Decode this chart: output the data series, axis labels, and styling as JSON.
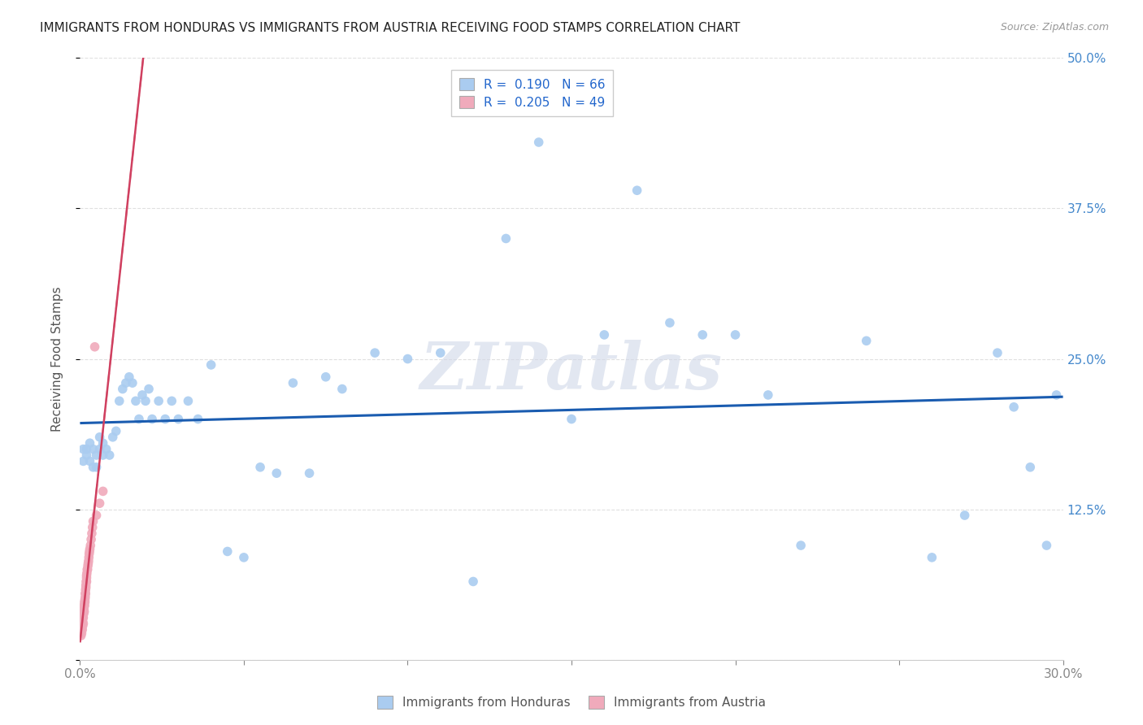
{
  "title": "IMMIGRANTS FROM HONDURAS VS IMMIGRANTS FROM AUSTRIA RECEIVING FOOD STAMPS CORRELATION CHART",
  "source_text": "Source: ZipAtlas.com",
  "ylabel": "Receiving Food Stamps",
  "xlim": [
    0.0,
    0.3
  ],
  "ylim": [
    0.0,
    0.5
  ],
  "background_color": "#ffffff",
  "grid_color": "#e0e0e0",
  "watermark": "ZIPatlas",
  "legend_label1": "Immigrants from Honduras",
  "legend_label2": "Immigrants from Austria",
  "honduras_color": "#aaccf0",
  "austria_color": "#f0aabb",
  "honduras_line_color": "#1a5cb0",
  "austria_line_color": "#d04060",
  "austria_dash_color": "#e08898",
  "dot_size": 70,
  "honduras_x": [
    0.001,
    0.001,
    0.002,
    0.002,
    0.003,
    0.003,
    0.004,
    0.004,
    0.005,
    0.005,
    0.006,
    0.006,
    0.007,
    0.007,
    0.008,
    0.009,
    0.01,
    0.011,
    0.012,
    0.013,
    0.014,
    0.015,
    0.016,
    0.017,
    0.018,
    0.019,
    0.02,
    0.021,
    0.022,
    0.024,
    0.026,
    0.028,
    0.03,
    0.033,
    0.036,
    0.04,
    0.045,
    0.05,
    0.055,
    0.06,
    0.065,
    0.07,
    0.075,
    0.08,
    0.09,
    0.1,
    0.11,
    0.12,
    0.13,
    0.14,
    0.15,
    0.16,
    0.17,
    0.18,
    0.19,
    0.2,
    0.21,
    0.22,
    0.24,
    0.26,
    0.27,
    0.28,
    0.285,
    0.29,
    0.295,
    0.298
  ],
  "honduras_y": [
    0.175,
    0.165,
    0.17,
    0.175,
    0.165,
    0.18,
    0.16,
    0.175,
    0.17,
    0.16,
    0.175,
    0.185,
    0.17,
    0.18,
    0.175,
    0.17,
    0.185,
    0.19,
    0.215,
    0.225,
    0.23,
    0.235,
    0.23,
    0.215,
    0.2,
    0.22,
    0.215,
    0.225,
    0.2,
    0.215,
    0.2,
    0.215,
    0.2,
    0.215,
    0.2,
    0.245,
    0.09,
    0.085,
    0.16,
    0.155,
    0.23,
    0.155,
    0.235,
    0.225,
    0.255,
    0.25,
    0.255,
    0.065,
    0.35,
    0.43,
    0.2,
    0.27,
    0.39,
    0.28,
    0.27,
    0.27,
    0.22,
    0.095,
    0.265,
    0.085,
    0.12,
    0.255,
    0.21,
    0.16,
    0.095,
    0.22
  ],
  "austria_x": [
    0.0003,
    0.0004,
    0.0005,
    0.0005,
    0.0006,
    0.0007,
    0.0008,
    0.0008,
    0.0009,
    0.001,
    0.001,
    0.001,
    0.0011,
    0.0012,
    0.0012,
    0.0013,
    0.0014,
    0.0014,
    0.0015,
    0.0015,
    0.0016,
    0.0016,
    0.0017,
    0.0017,
    0.0018,
    0.0018,
    0.0019,
    0.002,
    0.002,
    0.002,
    0.0021,
    0.0022,
    0.0023,
    0.0024,
    0.0025,
    0.0026,
    0.0027,
    0.0028,
    0.0029,
    0.003,
    0.0032,
    0.0034,
    0.0036,
    0.0038,
    0.004,
    0.0045,
    0.005,
    0.006,
    0.007
  ],
  "austria_y": [
    0.02,
    0.025,
    0.028,
    0.022,
    0.03,
    0.025,
    0.032,
    0.028,
    0.035,
    0.03,
    0.035,
    0.04,
    0.038,
    0.042,
    0.045,
    0.04,
    0.048,
    0.045,
    0.05,
    0.048,
    0.052,
    0.055,
    0.055,
    0.058,
    0.06,
    0.062,
    0.065,
    0.065,
    0.068,
    0.07,
    0.072,
    0.075,
    0.075,
    0.078,
    0.08,
    0.082,
    0.085,
    0.088,
    0.09,
    0.092,
    0.095,
    0.1,
    0.105,
    0.11,
    0.115,
    0.26,
    0.12,
    0.13,
    0.14
  ]
}
